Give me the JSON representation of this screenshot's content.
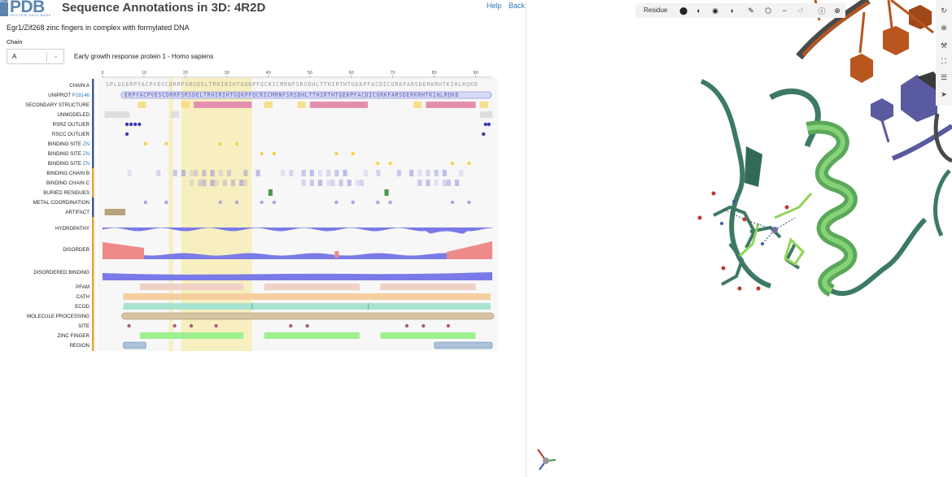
{
  "header": {
    "logo_side": "RCSB",
    "logo_text": "PDB",
    "logo_small": "PROTEIN DATA BANK",
    "title": "Sequence Annotations in 3D: 4R2D",
    "help_link": "Help",
    "back_link": "Back"
  },
  "subtitle": "Egr1/Zif268 zinc fingers in complex with formylated DNA",
  "chain_selector": {
    "label": "Chain",
    "value": "A"
  },
  "protein_name": "Early growth response protein 1 - Homo sapiens",
  "ruler": {
    "ticks": [
      0,
      10,
      20,
      30,
      40,
      50,
      60,
      70,
      80,
      90
    ],
    "sequence": "SPLGSERPYACPVESCDRRFSRSDELTRHIRIHTGQKPFQCRICMRNFSRSDHLTTHIRTHTGEKPFACDICGRKFARSDERKRHTKIHLRQKD",
    "uniprot_sequence": "ERPYACPVESCDRRFSRSDELTRHIRIHTGQKPFQCRICMRNFSRSDHLTTHIRTHTGEKPFACDICGRKFARSDERKRHTKIHLRQKD"
  },
  "tracks": [
    {
      "label": "CHAIN A",
      "accession": ""
    },
    {
      "label": "UNIPROT",
      "accession": "P18146"
    },
    {
      "label": "SECONDARY STRUCTURE",
      "accession": ""
    },
    {
      "label": "UNMODELED",
      "accession": ""
    },
    {
      "label": "RSRZ OUTLIER",
      "accession": ""
    },
    {
      "label": "RSCC OUTLIER",
      "accession": ""
    },
    {
      "label": "BINDING SITE",
      "accession": "ZN"
    },
    {
      "label": "BINDING SITE",
      "accession": "ZN"
    },
    {
      "label": "BINDING SITE",
      "accession": "ZN"
    },
    {
      "label": "BINDING CHAIN B",
      "accession": ""
    },
    {
      "label": "BINDING CHAIN C",
      "accession": ""
    },
    {
      "label": "BURIED RESIDUES",
      "accession": ""
    },
    {
      "label": "METAL COORDINATION",
      "accession": ""
    },
    {
      "label": "ARTIFACT",
      "accession": ""
    },
    {
      "label": "HYDROPATHY",
      "accession": ""
    },
    {
      "label": "DISORDER",
      "accession": ""
    },
    {
      "label": "DISORDERED BINDING",
      "accession": ""
    },
    {
      "label": "PFAM",
      "accession": ""
    },
    {
      "label": "CATH",
      "accession": ""
    },
    {
      "label": "ECOD",
      "accession": ""
    },
    {
      "label": "MOLECULE PROCESSING",
      "accession": ""
    },
    {
      "label": "SITE",
      "accession": ""
    },
    {
      "label": "ZINC FINGER",
      "accession": ""
    },
    {
      "label": "REGION",
      "accession": ""
    }
  ],
  "viewer": {
    "mode_label": "Residue",
    "toolbar_icons": [
      "toggle-icon",
      "half-circle-icon",
      "overlap-icon",
      "contrast-icon",
      "brush-icon",
      "cube-icon",
      "minus-icon",
      "undo-icon",
      "help-icon",
      "close-icon"
    ],
    "side_icons": [
      "refresh-icon",
      "camera-icon",
      "wrench-icon",
      "expand-icon",
      "sliders-icon",
      "cursor-icon"
    ]
  },
  "colors": {
    "brand": "#5b84b1",
    "highlight": "#f7efbf",
    "helix": "#e58fb0",
    "strand": "#f7df8a",
    "rsrz": "#3b3bb5",
    "zn_site": "#f3d34a",
    "metal": "#a6a6e0",
    "protein": "#3d7a63",
    "ligand": "#8fd45a",
    "dna_orange": "#b8561e",
    "dna_purple": "#5a5aa0"
  }
}
